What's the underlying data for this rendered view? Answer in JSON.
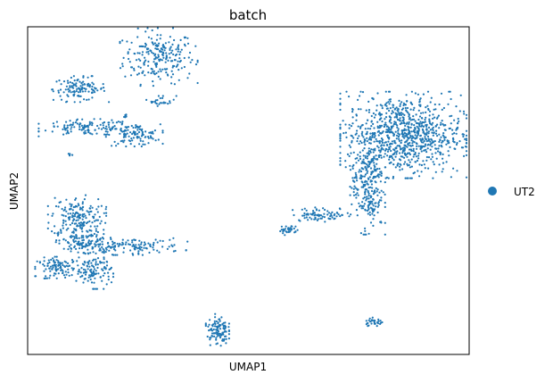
{
  "chart_data": {
    "type": "scatter",
    "title": "batch",
    "xlabel": "UMAP1",
    "ylabel": "UMAP2",
    "grid": false,
    "xticks": false,
    "yticks": false,
    "legend": {
      "placement": "right",
      "entries": [
        {
          "label": "UT2",
          "color": "#1f77b4"
        }
      ]
    },
    "series": [
      {
        "name": "UT2",
        "color": "#1f77b4",
        "clusters": [
          {
            "cx": 0.297,
            "cy": 0.908,
            "sx": 0.04,
            "sy": 0.04,
            "n": 230
          },
          {
            "cx": 0.304,
            "cy": 0.775,
            "sx": 0.016,
            "sy": 0.008,
            "n": 25
          },
          {
            "cx": 0.118,
            "cy": 0.81,
            "sx": 0.03,
            "sy": 0.018,
            "n": 120
          },
          {
            "cx": 0.135,
            "cy": 0.692,
            "sx": 0.05,
            "sy": 0.012,
            "n": 120
          },
          {
            "cx": 0.24,
            "cy": 0.67,
            "sx": 0.03,
            "sy": 0.016,
            "n": 110
          },
          {
            "cx": 0.222,
            "cy": 0.725,
            "sx": 0.004,
            "sy": 0.006,
            "n": 8
          },
          {
            "cx": 0.096,
            "cy": 0.61,
            "sx": 0.003,
            "sy": 0.003,
            "n": 6
          },
          {
            "cx": 0.112,
            "cy": 0.42,
            "sx": 0.03,
            "sy": 0.03,
            "n": 180
          },
          {
            "cx": 0.13,
            "cy": 0.34,
            "sx": 0.03,
            "sy": 0.02,
            "n": 120
          },
          {
            "cx": 0.23,
            "cy": 0.33,
            "sx": 0.06,
            "sy": 0.012,
            "n": 130
          },
          {
            "cx": 0.072,
            "cy": 0.265,
            "sx": 0.025,
            "sy": 0.015,
            "n": 110
          },
          {
            "cx": 0.15,
            "cy": 0.255,
            "sx": 0.02,
            "sy": 0.025,
            "n": 110
          },
          {
            "cx": 0.851,
            "cy": 0.67,
            "sx": 0.065,
            "sy": 0.06,
            "n": 900
          },
          {
            "cx": 0.77,
            "cy": 0.52,
            "sx": 0.018,
            "sy": 0.07,
            "n": 260
          },
          {
            "cx": 0.67,
            "cy": 0.427,
            "sx": 0.035,
            "sy": 0.01,
            "n": 80
          },
          {
            "cx": 0.59,
            "cy": 0.38,
            "sx": 0.01,
            "sy": 0.008,
            "n": 35
          },
          {
            "cx": 0.43,
            "cy": 0.075,
            "sx": 0.012,
            "sy": 0.022,
            "n": 110
          },
          {
            "cx": 0.784,
            "cy": 0.1,
            "sx": 0.012,
            "sy": 0.006,
            "n": 30
          }
        ]
      }
    ]
  }
}
